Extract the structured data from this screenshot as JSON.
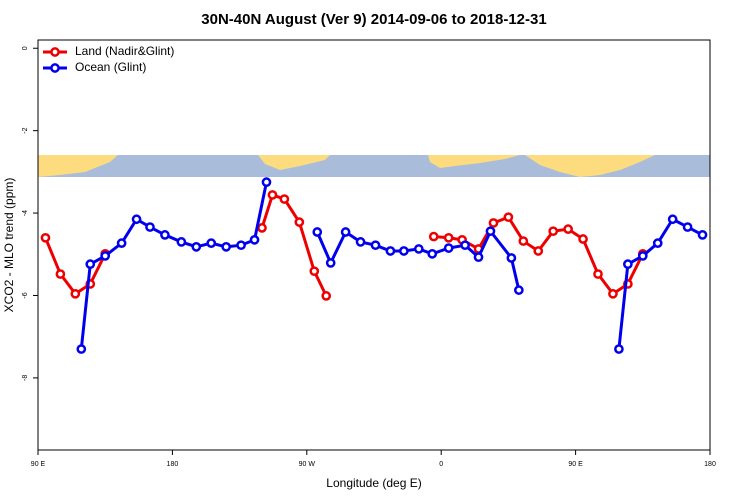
{
  "chart_data": {
    "type": "line",
    "title": "30N-40N August (Ver 9)   2014-09-06 to 2018-12-31",
    "x_label": "Longitude (deg E)",
    "y_label": "XCO2 - MLO trend (ppm)",
    "xlim": [
      90,
      540
    ],
    "xticks": [
      {
        "value": 90,
        "label": "90 E"
      },
      180,
      {
        "value": 270,
        "label": "90 W"
      },
      {
        "value": 360,
        "label": "0"
      },
      {
        "value": 450,
        "label": "90 E"
      },
      {
        "value": 540,
        "label": "180"
      }
    ],
    "ylim": [
      -9.75,
      0.2
    ],
    "yticks": [
      0,
      -2,
      -4,
      -6,
      -8
    ],
    "legend": "top-left",
    "series": [
      {
        "name": "Land (Nadir&Glint)",
        "color": "#ee0000",
        "x": [
          95,
          105,
          115,
          125,
          135,
          null,
          240,
          247,
          255,
          265,
          275,
          283,
          null,
          355,
          365,
          374,
          385,
          395,
          405,
          415,
          425,
          435,
          445,
          455,
          465,
          475,
          485,
          495
        ],
        "values": [
          -4.6,
          -5.48,
          -5.96,
          -5.72,
          -4.99,
          null,
          -4.36,
          -3.56,
          -3.66,
          -4.22,
          -5.41,
          -6.01,
          null,
          -4.57,
          -4.6,
          -4.65,
          -4.87,
          -4.24,
          -4.1,
          -4.68,
          -4.92,
          -4.44,
          -4.39,
          -4.63,
          -5.48,
          -5.96,
          -5.72,
          -4.99
        ]
      },
      {
        "name": "Ocean (Glint)",
        "color": "#0000ee",
        "x": [
          119,
          125,
          135,
          146,
          156,
          165,
          175,
          186,
          196,
          206,
          216,
          226,
          235,
          243,
          null,
          277,
          286,
          296,
          306,
          316,
          326,
          335,
          345,
          354,
          365,
          376,
          385,
          393,
          407,
          412,
          null,
          479,
          485,
          495,
          505,
          515,
          525,
          535
        ],
        "values": [
          -7.3,
          -5.24,
          -5.04,
          -4.73,
          -4.15,
          -4.34,
          -4.53,
          -4.7,
          -4.82,
          -4.73,
          -4.82,
          -4.78,
          -4.65,
          -3.25,
          null,
          -4.46,
          -5.21,
          -4.46,
          -4.7,
          -4.78,
          -4.92,
          -4.92,
          -4.87,
          -4.99,
          -4.85,
          -4.78,
          -5.07,
          -4.44,
          -5.09,
          -5.87,
          null,
          -7.3,
          -5.24,
          -5.04,
          -4.73,
          -4.15,
          -4.34,
          -4.53
        ]
      }
    ]
  }
}
